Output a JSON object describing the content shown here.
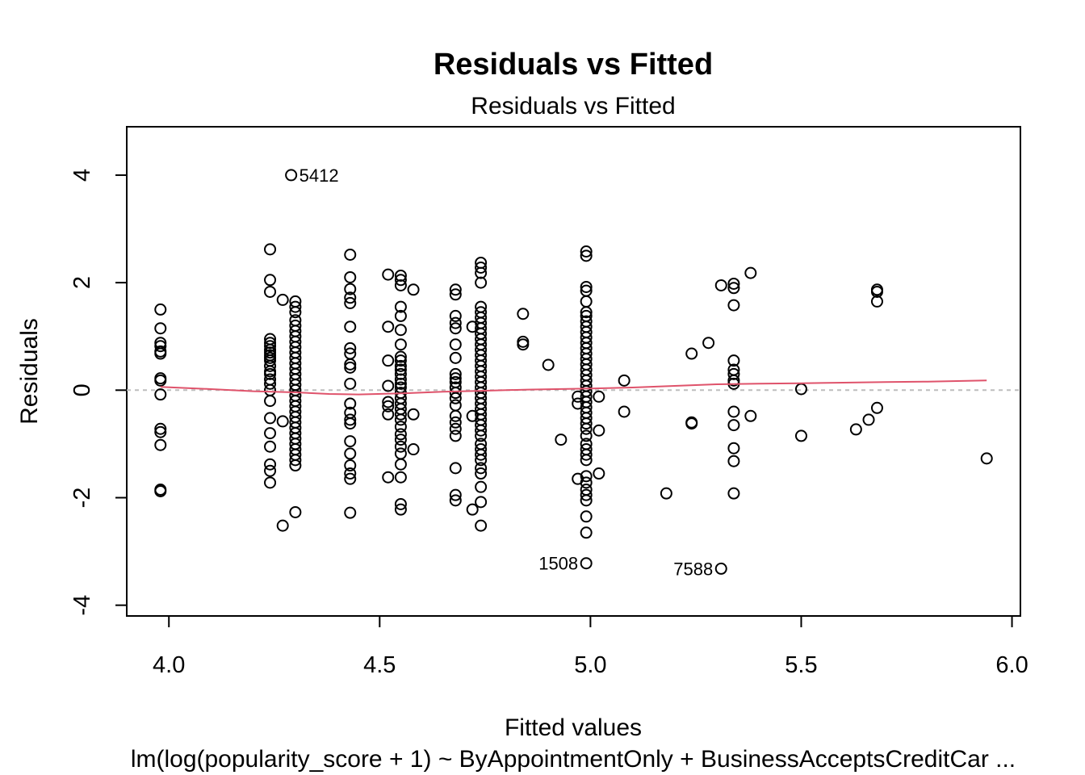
{
  "chart_data": {
    "type": "scatter",
    "title": "Residuals vs Fitted",
    "subtitle": "Residuals vs Fitted",
    "xlabel": "Fitted values",
    "ylabel": "Residuals",
    "caption": "lm(log(popularity_score + 1) ~ ByAppointmentOnly + BusinessAcceptsCreditCar ...",
    "xlim": [
      3.9,
      6.02
    ],
    "ylim": [
      -4.2,
      4.9
    ],
    "x_ticks": [
      4.0,
      4.5,
      5.0,
      5.5,
      6.0
    ],
    "x_tick_labels": [
      "4.0",
      "4.5",
      "5.0",
      "5.5",
      "6.0"
    ],
    "y_ticks": [
      -4,
      -2,
      0,
      2,
      4
    ],
    "y_tick_labels": [
      "-4",
      "-2",
      "0",
      "2",
      "4"
    ],
    "grid": false,
    "colors": {
      "points": "#000000",
      "smooth_line": "#DF536B",
      "reference_line": "#BEBEBE"
    },
    "points": [
      [
        3.98,
        1.5
      ],
      [
        3.98,
        1.15
      ],
      [
        3.98,
        0.88
      ],
      [
        3.98,
        0.82
      ],
      [
        3.98,
        0.72
      ],
      [
        3.98,
        0.68
      ],
      [
        3.98,
        0.22
      ],
      [
        3.98,
        0.18
      ],
      [
        3.98,
        -0.08
      ],
      [
        3.98,
        -0.72
      ],
      [
        3.98,
        -0.78
      ],
      [
        3.98,
        -1.02
      ],
      [
        3.98,
        -1.85
      ],
      [
        3.98,
        -1.88
      ],
      [
        4.24,
        2.62
      ],
      [
        4.24,
        2.05
      ],
      [
        4.24,
        1.83
      ],
      [
        4.24,
        0.95
      ],
      [
        4.24,
        0.88
      ],
      [
        4.24,
        0.82
      ],
      [
        4.24,
        0.75
      ],
      [
        4.24,
        0.7
      ],
      [
        4.24,
        0.65
      ],
      [
        4.24,
        0.6
      ],
      [
        4.24,
        0.55
      ],
      [
        4.24,
        0.45
      ],
      [
        4.24,
        0.35
      ],
      [
        4.24,
        0.3
      ],
      [
        4.24,
        0.2
      ],
      [
        4.24,
        0.12
      ],
      [
        4.24,
        0.0
      ],
      [
        4.24,
        -0.2
      ],
      [
        4.24,
        -0.52
      ],
      [
        4.24,
        -0.8
      ],
      [
        4.24,
        -1.05
      ],
      [
        4.24,
        -1.38
      ],
      [
        4.24,
        -1.5
      ],
      [
        4.24,
        -1.72
      ],
      [
        4.27,
        1.68
      ],
      [
        4.27,
        -0.58
      ],
      [
        4.27,
        -2.52
      ],
      [
        4.29,
        4.0
      ],
      [
        4.3,
        1.65
      ],
      [
        4.3,
        1.55
      ],
      [
        4.3,
        1.45
      ],
      [
        4.3,
        1.3
      ],
      [
        4.3,
        1.2
      ],
      [
        4.3,
        1.1
      ],
      [
        4.3,
        1.0
      ],
      [
        4.3,
        0.9
      ],
      [
        4.3,
        0.8
      ],
      [
        4.3,
        0.7
      ],
      [
        4.3,
        0.6
      ],
      [
        4.3,
        0.5
      ],
      [
        4.3,
        0.4
      ],
      [
        4.3,
        0.3
      ],
      [
        4.3,
        0.2
      ],
      [
        4.3,
        0.1
      ],
      [
        4.3,
        0.0
      ],
      [
        4.3,
        -0.1
      ],
      [
        4.3,
        -0.2
      ],
      [
        4.3,
        -0.3
      ],
      [
        4.3,
        -0.4
      ],
      [
        4.3,
        -0.5
      ],
      [
        4.3,
        -0.6
      ],
      [
        4.3,
        -0.7
      ],
      [
        4.3,
        -0.8
      ],
      [
        4.3,
        -0.9
      ],
      [
        4.3,
        -1.0
      ],
      [
        4.3,
        -1.1
      ],
      [
        4.3,
        -1.2
      ],
      [
        4.3,
        -1.3
      ],
      [
        4.3,
        -1.4
      ],
      [
        4.3,
        -2.27
      ],
      [
        4.43,
        2.52
      ],
      [
        4.43,
        2.1
      ],
      [
        4.43,
        1.88
      ],
      [
        4.43,
        1.72
      ],
      [
        4.43,
        1.62
      ],
      [
        4.43,
        1.18
      ],
      [
        4.43,
        0.78
      ],
      [
        4.43,
        0.68
      ],
      [
        4.43,
        0.48
      ],
      [
        4.43,
        0.42
      ],
      [
        4.43,
        0.12
      ],
      [
        4.43,
        -0.25
      ],
      [
        4.43,
        -0.42
      ],
      [
        4.43,
        -0.55
      ],
      [
        4.43,
        -0.62
      ],
      [
        4.43,
        -0.95
      ],
      [
        4.43,
        -1.18
      ],
      [
        4.43,
        -1.4
      ],
      [
        4.43,
        -1.55
      ],
      [
        4.43,
        -1.65
      ],
      [
        4.43,
        -2.28
      ],
      [
        4.52,
        2.15
      ],
      [
        4.52,
        1.18
      ],
      [
        4.52,
        0.55
      ],
      [
        4.52,
        0.08
      ],
      [
        4.52,
        -0.22
      ],
      [
        4.52,
        -0.3
      ],
      [
        4.52,
        -0.45
      ],
      [
        4.52,
        -1.62
      ],
      [
        4.55,
        2.13
      ],
      [
        4.55,
        2.05
      ],
      [
        4.55,
        1.95
      ],
      [
        4.55,
        1.55
      ],
      [
        4.55,
        1.38
      ],
      [
        4.55,
        1.12
      ],
      [
        4.55,
        0.85
      ],
      [
        4.55,
        0.62
      ],
      [
        4.55,
        0.55
      ],
      [
        4.55,
        0.45
      ],
      [
        4.55,
        0.38
      ],
      [
        4.55,
        0.3
      ],
      [
        4.55,
        0.2
      ],
      [
        4.55,
        0.12
      ],
      [
        4.55,
        0.05
      ],
      [
        4.55,
        -0.05
      ],
      [
        4.55,
        -0.15
      ],
      [
        4.55,
        -0.25
      ],
      [
        4.55,
        -0.35
      ],
      [
        4.55,
        -0.45
      ],
      [
        4.55,
        -0.55
      ],
      [
        4.55,
        -0.68
      ],
      [
        4.55,
        -0.82
      ],
      [
        4.55,
        -0.92
      ],
      [
        4.55,
        -1.05
      ],
      [
        4.55,
        -1.18
      ],
      [
        4.55,
        -1.38
      ],
      [
        4.55,
        -1.62
      ],
      [
        4.55,
        -2.12
      ],
      [
        4.55,
        -2.22
      ],
      [
        4.58,
        1.87
      ],
      [
        4.58,
        -0.45
      ],
      [
        4.58,
        -1.1
      ],
      [
        4.68,
        1.87
      ],
      [
        4.68,
        1.78
      ],
      [
        4.68,
        1.38
      ],
      [
        4.68,
        1.25
      ],
      [
        4.68,
        1.15
      ],
      [
        4.68,
        0.85
      ],
      [
        4.68,
        0.6
      ],
      [
        4.68,
        0.3
      ],
      [
        4.68,
        0.22
      ],
      [
        4.68,
        0.15
      ],
      [
        4.68,
        0.05
      ],
      [
        4.68,
        -0.05
      ],
      [
        4.68,
        -0.15
      ],
      [
        4.68,
        -0.28
      ],
      [
        4.68,
        -0.48
      ],
      [
        4.68,
        -0.6
      ],
      [
        4.68,
        -0.72
      ],
      [
        4.68,
        -0.85
      ],
      [
        4.68,
        -1.45
      ],
      [
        4.68,
        -1.95
      ],
      [
        4.68,
        -2.05
      ],
      [
        4.72,
        1.18
      ],
      [
        4.72,
        -0.48
      ],
      [
        4.72,
        -2.22
      ],
      [
        4.74,
        2.37
      ],
      [
        4.74,
        2.28
      ],
      [
        4.74,
        2.18
      ],
      [
        4.74,
        2.0
      ],
      [
        4.74,
        1.55
      ],
      [
        4.74,
        1.45
      ],
      [
        4.74,
        1.35
      ],
      [
        4.74,
        1.25
      ],
      [
        4.74,
        1.15
      ],
      [
        4.74,
        1.05
      ],
      [
        4.74,
        0.95
      ],
      [
        4.74,
        0.85
      ],
      [
        4.74,
        0.75
      ],
      [
        4.74,
        0.65
      ],
      [
        4.74,
        0.55
      ],
      [
        4.74,
        0.45
      ],
      [
        4.74,
        0.35
      ],
      [
        4.74,
        0.25
      ],
      [
        4.74,
        0.15
      ],
      [
        4.74,
        0.05
      ],
      [
        4.74,
        -0.05
      ],
      [
        4.74,
        -0.15
      ],
      [
        4.74,
        -0.25
      ],
      [
        4.74,
        -0.35
      ],
      [
        4.74,
        -0.45
      ],
      [
        4.74,
        -0.55
      ],
      [
        4.74,
        -0.65
      ],
      [
        4.74,
        -0.75
      ],
      [
        4.74,
        -0.85
      ],
      [
        4.74,
        -1.0
      ],
      [
        4.74,
        -1.1
      ],
      [
        4.74,
        -1.2
      ],
      [
        4.74,
        -1.3
      ],
      [
        4.74,
        -1.45
      ],
      [
        4.74,
        -1.55
      ],
      [
        4.74,
        -1.8
      ],
      [
        4.74,
        -2.08
      ],
      [
        4.74,
        -2.52
      ],
      [
        4.84,
        1.42
      ],
      [
        4.84,
        0.9
      ],
      [
        4.84,
        0.85
      ],
      [
        4.9,
        0.47
      ],
      [
        4.93,
        -0.92
      ],
      [
        4.97,
        -0.12
      ],
      [
        4.97,
        -0.25
      ],
      [
        4.97,
        -1.65
      ],
      [
        4.99,
        2.58
      ],
      [
        4.99,
        2.5
      ],
      [
        4.99,
        1.92
      ],
      [
        4.99,
        1.85
      ],
      [
        4.99,
        1.65
      ],
      [
        4.99,
        1.45
      ],
      [
        4.99,
        1.38
      ],
      [
        4.99,
        1.28
      ],
      [
        4.99,
        1.18
      ],
      [
        4.99,
        1.08
      ],
      [
        4.99,
        0.98
      ],
      [
        4.99,
        0.88
      ],
      [
        4.99,
        0.78
      ],
      [
        4.99,
        0.68
      ],
      [
        4.99,
        0.58
      ],
      [
        4.99,
        0.48
      ],
      [
        4.99,
        0.38
      ],
      [
        4.99,
        0.28
      ],
      [
        4.99,
        0.18
      ],
      [
        4.99,
        0.08
      ],
      [
        4.99,
        -0.02
      ],
      [
        4.99,
        -0.12
      ],
      [
        4.99,
        -0.22
      ],
      [
        4.99,
        -0.32
      ],
      [
        4.99,
        -0.42
      ],
      [
        4.99,
        -0.52
      ],
      [
        4.99,
        -0.62
      ],
      [
        4.99,
        -0.72
      ],
      [
        4.99,
        -0.85
      ],
      [
        4.99,
        -1.0
      ],
      [
        4.99,
        -1.1
      ],
      [
        4.99,
        -1.2
      ],
      [
        4.99,
        -1.3
      ],
      [
        4.99,
        -1.6
      ],
      [
        4.99,
        -1.72
      ],
      [
        4.99,
        -1.85
      ],
      [
        4.99,
        -1.95
      ],
      [
        4.99,
        -2.05
      ],
      [
        4.99,
        -2.35
      ],
      [
        4.99,
        -2.65
      ],
      [
        4.99,
        -3.22
      ],
      [
        5.02,
        -0.12
      ],
      [
        5.02,
        -0.75
      ],
      [
        5.02,
        -1.55
      ],
      [
        5.08,
        0.18
      ],
      [
        5.08,
        -0.4
      ],
      [
        5.18,
        -1.92
      ],
      [
        5.24,
        0.68
      ],
      [
        5.24,
        -0.6
      ],
      [
        5.24,
        -0.62
      ],
      [
        5.28,
        0.88
      ],
      [
        5.31,
        1.95
      ],
      [
        5.31,
        -3.32
      ],
      [
        5.34,
        1.98
      ],
      [
        5.34,
        1.9
      ],
      [
        5.34,
        1.58
      ],
      [
        5.34,
        0.55
      ],
      [
        5.34,
        0.38
      ],
      [
        5.34,
        0.3
      ],
      [
        5.34,
        0.18
      ],
      [
        5.34,
        0.12
      ],
      [
        5.34,
        -0.4
      ],
      [
        5.34,
        -0.65
      ],
      [
        5.34,
        -1.08
      ],
      [
        5.34,
        -1.32
      ],
      [
        5.34,
        -1.92
      ],
      [
        5.38,
        2.18
      ],
      [
        5.38,
        -0.48
      ],
      [
        5.5,
        0.02
      ],
      [
        5.5,
        -0.85
      ],
      [
        5.63,
        -0.73
      ],
      [
        5.66,
        -0.55
      ],
      [
        5.68,
        1.87
      ],
      [
        5.68,
        1.83
      ],
      [
        5.68,
        1.65
      ],
      [
        5.68,
        -0.33
      ],
      [
        5.94,
        -1.27
      ]
    ],
    "smooth_line": [
      [
        3.98,
        0.06
      ],
      [
        4.1,
        0.02
      ],
      [
        4.2,
        -0.02
      ],
      [
        4.3,
        -0.04
      ],
      [
        4.38,
        -0.07
      ],
      [
        4.45,
        -0.08
      ],
      [
        4.55,
        -0.06
      ],
      [
        4.65,
        -0.03
      ],
      [
        4.75,
        -0.01
      ],
      [
        4.85,
        0.01
      ],
      [
        5.0,
        0.03
      ],
      [
        5.1,
        0.05
      ],
      [
        5.2,
        0.08
      ],
      [
        5.3,
        0.11
      ],
      [
        5.4,
        0.12
      ],
      [
        5.5,
        0.13
      ],
      [
        5.6,
        0.14
      ],
      [
        5.7,
        0.15
      ],
      [
        5.8,
        0.16
      ],
      [
        5.94,
        0.18
      ]
    ],
    "reference_line_y": 0,
    "annotations": [
      {
        "label": "5412",
        "x": 4.29,
        "y": 4.0,
        "side": "right"
      },
      {
        "label": "1508",
        "x": 4.99,
        "y": -3.22,
        "side": "left"
      },
      {
        "label": "7588",
        "x": 5.31,
        "y": -3.32,
        "side": "left"
      }
    ]
  }
}
